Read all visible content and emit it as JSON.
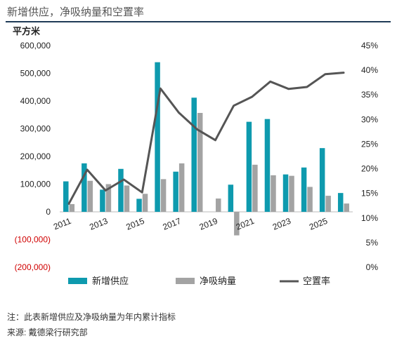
{
  "title": "新增供应，净吸纳量和空置率",
  "note": "注：此表新增供应及净吸纳量为年内累计指标",
  "source": "来源: 戴德梁行研究部",
  "colors": {
    "supply": "#0e9aae",
    "absorption": "#a3a3a3",
    "vacancy": "#555555",
    "negative_tick": "#d00000"
  },
  "chart_data": {
    "type": "bar",
    "title": "新增供应，净吸纳量和空置率",
    "ylabel": "平方米",
    "y2label": "",
    "ylim": [
      -200000,
      600000
    ],
    "y2lim": [
      0,
      45
    ],
    "yticks": [
      -200000,
      -100000,
      0,
      100000,
      200000,
      300000,
      400000,
      500000,
      600000
    ],
    "ytick_labels": [
      "(200,000)",
      "(100,000)",
      "0",
      "100,000",
      "200,000",
      "300,000",
      "400,000",
      "500,000",
      "600,000"
    ],
    "y2ticks": [
      0,
      5,
      10,
      15,
      20,
      25,
      30,
      35,
      40,
      45
    ],
    "y2tick_labels": [
      "0%",
      "5%",
      "10%",
      "15%",
      "20%",
      "25%",
      "30%",
      "35%",
      "40%",
      "45%"
    ],
    "categories": [
      "2011",
      "2012",
      "2013",
      "2014",
      "2015",
      "2016",
      "2017",
      "2018",
      "2019",
      "2020",
      "2021",
      "2022",
      "2023",
      "2024",
      "2025",
      "2026"
    ],
    "xtick_labels": [
      "2011",
      "2013",
      "2015",
      "2017",
      "2019",
      "2021",
      "2023",
      "2025"
    ],
    "series": [
      {
        "name": "新增供应",
        "type": "bar",
        "axis": "left",
        "values": [
          110000,
          175000,
          80000,
          155000,
          47000,
          540000,
          145000,
          412000,
          0,
          98000,
          325000,
          335000,
          135000,
          160000,
          230000,
          68000
        ]
      },
      {
        "name": "净吸纳量",
        "type": "bar",
        "axis": "left",
        "values": [
          28000,
          112000,
          100000,
          95000,
          65000,
          118000,
          175000,
          357000,
          48000,
          -85000,
          170000,
          132000,
          130000,
          90000,
          58000,
          30000
        ]
      },
      {
        "name": "空置率",
        "type": "line",
        "axis": "right",
        "values": [
          12.9,
          19.8,
          15.6,
          17.8,
          15.2,
          36.3,
          31.4,
          28.0,
          25.8,
          32.8,
          34.6,
          37.7,
          36.2,
          36.6,
          39.2,
          39.5
        ]
      }
    ],
    "legend_position": "bottom",
    "grid": false
  }
}
